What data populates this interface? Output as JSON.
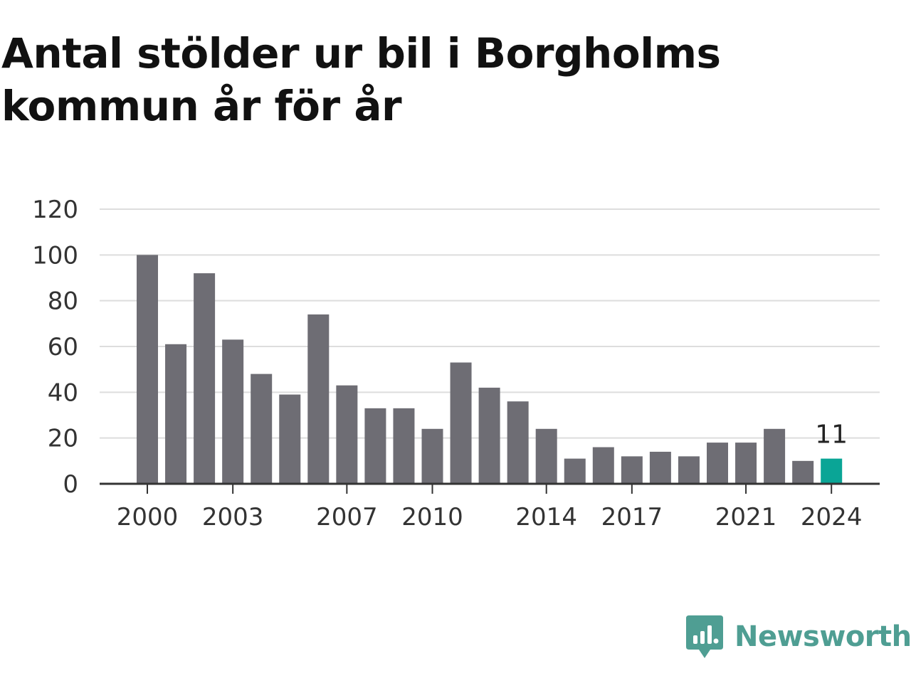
{
  "title": "Antal stölder ur bil i Borgholms kommun år för år",
  "colors": {
    "bar": "#6e6d74",
    "highlight": "#0aa596",
    "grid": "#dddddd",
    "axis": "#333333",
    "brand": "#4f9e93"
  },
  "brand": {
    "name": "Newsworthy",
    "icon": "newsworthy-logo-icon"
  },
  "chart_data": {
    "type": "bar",
    "title": "Antal stölder ur bil i Borgholms kommun år för år",
    "xlabel": "",
    "ylabel": "",
    "categories": [
      2000,
      2001,
      2002,
      2003,
      2004,
      2005,
      2006,
      2007,
      2008,
      2009,
      2010,
      2011,
      2012,
      2013,
      2014,
      2015,
      2016,
      2017,
      2018,
      2019,
      2020,
      2021,
      2022,
      2023,
      2024
    ],
    "values": [
      100,
      61,
      92,
      63,
      48,
      39,
      74,
      43,
      33,
      33,
      24,
      53,
      42,
      36,
      24,
      11,
      16,
      12,
      14,
      12,
      18,
      18,
      24,
      10,
      11
    ],
    "x_tick_labels": [
      2000,
      2003,
      2007,
      2010,
      2014,
      2017,
      2021,
      2024
    ],
    "y_ticks": [
      0,
      20,
      40,
      60,
      80,
      100,
      120
    ],
    "ylim": [
      0,
      120
    ],
    "grid": true,
    "legend": "none",
    "highlight_category": 2024,
    "annotations": [
      {
        "category": 2024,
        "text": "11"
      }
    ]
  }
}
